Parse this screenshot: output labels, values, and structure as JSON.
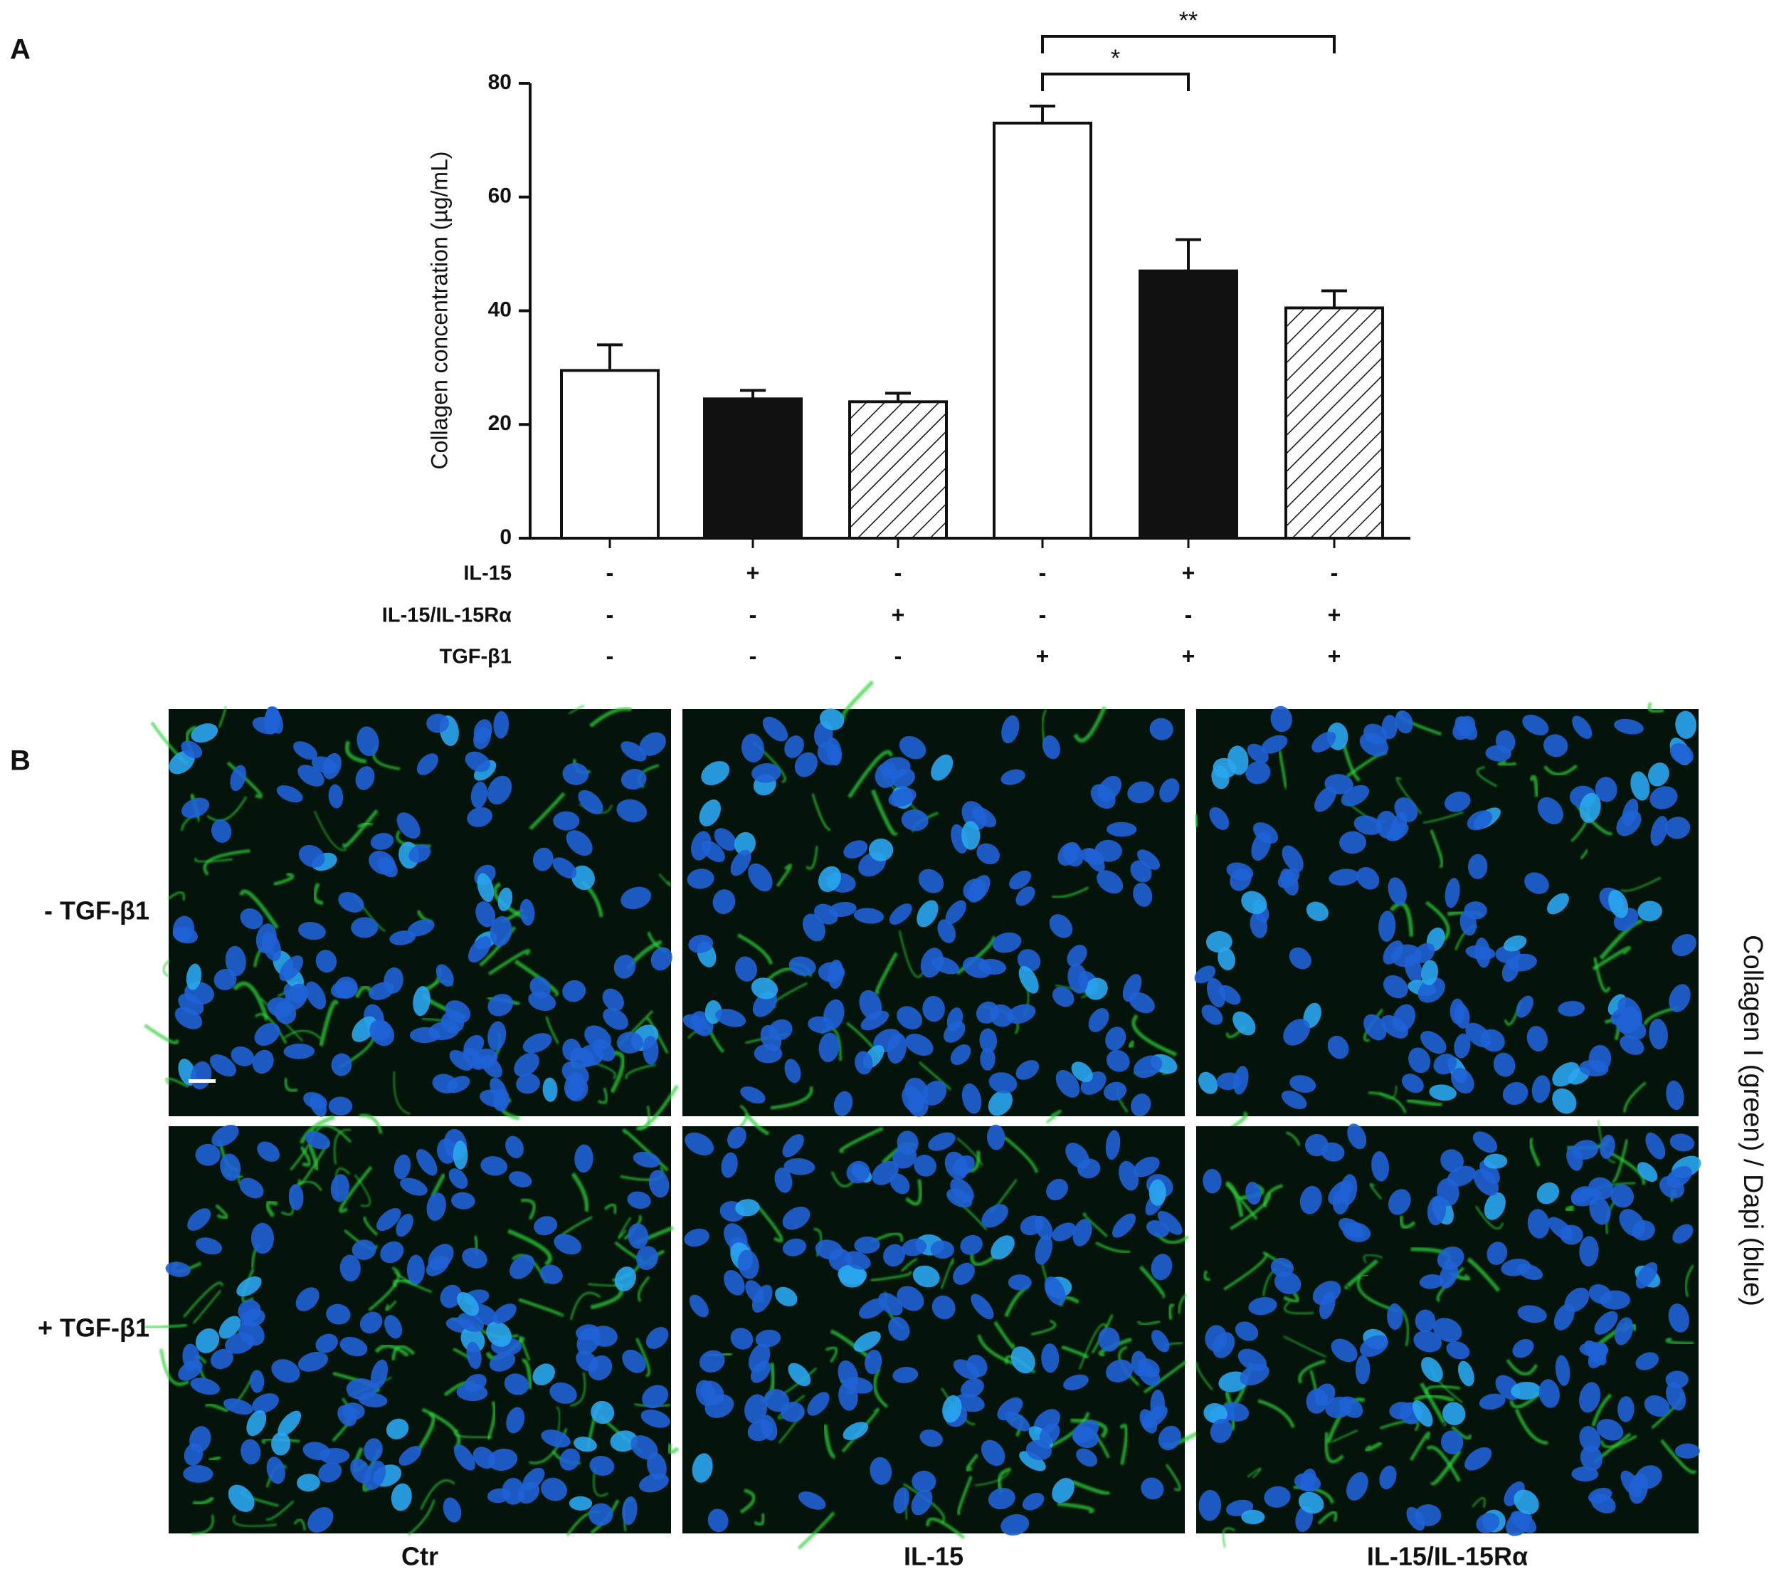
{
  "chart_data": {
    "type": "bar",
    "panel_label": "A",
    "y_label": "Collagen concentration (µg/mL)",
    "ylim": [
      0,
      80
    ],
    "yticks": [
      0,
      20,
      40,
      60,
      80
    ],
    "values": [
      29.5,
      24.5,
      24,
      73,
      47,
      40.5
    ],
    "errors": [
      4.5,
      1.5,
      1.5,
      3,
      5.5,
      3
    ],
    "fills": [
      "#ffffff",
      "#111111",
      "hatch",
      "#ffffff",
      "#111111",
      "hatch"
    ],
    "treatments": [
      {
        "name": "IL-15",
        "signs": [
          "-",
          "+",
          "-",
          "-",
          "+",
          "-"
        ]
      },
      {
        "name": "IL-15/IL-15Rα",
        "signs": [
          "-",
          "-",
          "+",
          "-",
          "-",
          "+"
        ]
      },
      {
        "name": "TGF-β1",
        "signs": [
          "-",
          "-",
          "-",
          "+",
          "+",
          "+"
        ]
      }
    ],
    "brackets": [
      {
        "from": 3,
        "to": 4,
        "label": "*"
      },
      {
        "from": 3,
        "to": 5,
        "label": "**"
      }
    ]
  },
  "panel_b": {
    "label": "B",
    "row_labels": [
      "- TGF-β1",
      "+ TGF-β1"
    ],
    "column_labels": [
      "Ctr",
      "IL-15",
      "IL-15/IL-15Rα"
    ],
    "side_label": "Collagen I (green) / Dapi (blue)"
  }
}
